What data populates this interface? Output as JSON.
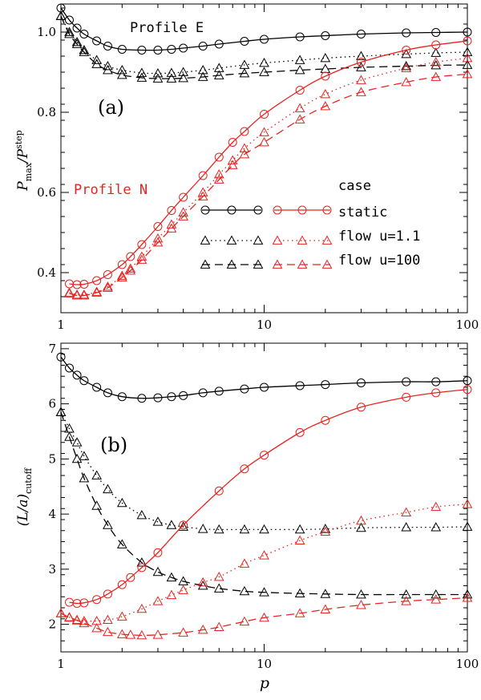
{
  "colors": {
    "black": "#000000",
    "red": "#e8231f"
  },
  "x_label": "p",
  "chart_data": [
    {
      "type": "line",
      "panel_label": "(a)",
      "title": "",
      "xlabel": "p",
      "ylabel_main": "P",
      "ylabel_sub1": "max",
      "ylabel_sep": "/P",
      "ylabel_sup": "step",
      "xscale": "log",
      "xlim": [
        1,
        100
      ],
      "ylim": [
        0.3,
        1.07
      ],
      "x_ticks": [
        1,
        10,
        100
      ],
      "x_tick_labels": [
        "1",
        "10",
        "100"
      ],
      "y_ticks": [
        0.4,
        0.6,
        0.8,
        1.0
      ],
      "y_tick_labels": [
        "0.4",
        "0.6",
        "0.8",
        "1.0"
      ],
      "annotations": [
        {
          "text": "Profile E",
          "color": "black"
        },
        {
          "text": "Profile N",
          "color": "red"
        }
      ],
      "legend": {
        "title": "case",
        "entries": [
          {
            "label": "static",
            "style": "solid",
            "marker": "circle"
          },
          {
            "label": "flow u=1.1",
            "style": "dotted",
            "marker": "triangle"
          },
          {
            "label": "flow u=100",
            "style": "dashed",
            "marker": "triangle"
          }
        ]
      },
      "series": [
        {
          "name": "Profile E static",
          "color": "black",
          "style": "solid",
          "marker": "circle",
          "x": [
            1,
            1.1,
            1.2,
            1.3,
            1.5,
            1.7,
            2,
            2.5,
            3,
            3.5,
            4,
            5,
            6,
            8,
            10,
            15,
            20,
            30,
            50,
            70,
            100
          ],
          "y": [
            1.06,
            1.03,
            1.01,
            0.995,
            0.978,
            0.965,
            0.957,
            0.955,
            0.955,
            0.957,
            0.96,
            0.965,
            0.97,
            0.977,
            0.982,
            0.988,
            0.991,
            0.995,
            0.998,
            0.999,
            1.0
          ]
        },
        {
          "name": "Profile E flow u=1.1",
          "color": "black",
          "style": "dotted",
          "marker": "triangle",
          "x": [
            1,
            1.1,
            1.2,
            1.3,
            1.5,
            1.7,
            2,
            2.5,
            3,
            3.5,
            4,
            5,
            6,
            8,
            10,
            15,
            20,
            30,
            50,
            70,
            100
          ],
          "y": [
            1.04,
            1.0,
            0.975,
            0.955,
            0.93,
            0.915,
            0.905,
            0.898,
            0.897,
            0.898,
            0.9,
            0.905,
            0.91,
            0.918,
            0.923,
            0.93,
            0.935,
            0.94,
            0.945,
            0.948,
            0.95
          ]
        },
        {
          "name": "Profile E flow u=100",
          "color": "black",
          "style": "dashed",
          "marker": "triangle",
          "x": [
            1,
            1.1,
            1.2,
            1.3,
            1.5,
            1.7,
            2,
            2.5,
            3,
            3.5,
            4,
            5,
            6,
            8,
            10,
            15,
            20,
            30,
            50,
            70,
            100
          ],
          "y": [
            1.04,
            0.995,
            0.97,
            0.95,
            0.92,
            0.905,
            0.893,
            0.886,
            0.884,
            0.884,
            0.885,
            0.888,
            0.892,
            0.897,
            0.9,
            0.905,
            0.908,
            0.912,
            0.915,
            0.917,
            0.918
          ]
        },
        {
          "name": "Profile N static",
          "color": "red",
          "style": "solid",
          "marker": "circle",
          "x": [
            1.1,
            1.2,
            1.3,
            1.5,
            1.7,
            2,
            2.2,
            2.5,
            3,
            3.5,
            4,
            5,
            6,
            7,
            8,
            10,
            15,
            20,
            30,
            50,
            70,
            100
          ],
          "y": [
            0.372,
            0.37,
            0.371,
            0.38,
            0.395,
            0.42,
            0.44,
            0.47,
            0.515,
            0.555,
            0.588,
            0.642,
            0.688,
            0.725,
            0.752,
            0.795,
            0.855,
            0.89,
            0.925,
            0.955,
            0.968,
            0.978
          ]
        },
        {
          "name": "Profile N flow u=1.1",
          "color": "red",
          "style": "dotted",
          "marker": "triangle",
          "x": [
            1.1,
            1.2,
            1.3,
            1.5,
            1.7,
            2,
            2.2,
            2.5,
            3,
            3.5,
            4,
            5,
            6,
            7,
            8,
            10,
            15,
            20,
            30,
            50,
            70,
            100
          ],
          "y": [
            0.35,
            0.345,
            0.345,
            0.352,
            0.365,
            0.392,
            0.41,
            0.44,
            0.485,
            0.52,
            0.55,
            0.6,
            0.645,
            0.68,
            0.71,
            0.75,
            0.81,
            0.845,
            0.88,
            0.91,
            0.925,
            0.935
          ]
        },
        {
          "name": "Profile N flow u=100",
          "color": "red",
          "style": "dashed",
          "marker": "triangle",
          "x": [
            1.1,
            1.2,
            1.3,
            1.5,
            1.7,
            2,
            2.2,
            2.5,
            3,
            3.5,
            4,
            5,
            6,
            7,
            8,
            10,
            15,
            20,
            30,
            50,
            70,
            100
          ],
          "y": [
            0.348,
            0.343,
            0.343,
            0.35,
            0.362,
            0.388,
            0.405,
            0.432,
            0.475,
            0.51,
            0.54,
            0.59,
            0.632,
            0.668,
            0.695,
            0.725,
            0.782,
            0.815,
            0.85,
            0.875,
            0.888,
            0.895
          ]
        }
      ]
    },
    {
      "type": "line",
      "panel_label": "(b)",
      "title": "",
      "xlabel": "p",
      "ylabel_main": "(L/a)",
      "ylabel_sub1": "cutoff",
      "ylabel_sep": "",
      "ylabel_sup": "",
      "xscale": "log",
      "xlim": [
        1,
        100
      ],
      "ylim": [
        1.5,
        7.1
      ],
      "x_ticks": [
        1,
        10,
        100
      ],
      "x_tick_labels": [
        "1",
        "10",
        "100"
      ],
      "y_ticks": [
        2,
        3,
        4,
        5,
        6,
        7
      ],
      "y_tick_labels": [
        "2",
        "3",
        "4",
        "5",
        "6",
        "7"
      ],
      "annotations": [],
      "legend": null,
      "series": [
        {
          "name": "Profile E static",
          "color": "black",
          "style": "solid",
          "marker": "circle",
          "x": [
            1,
            1.1,
            1.2,
            1.3,
            1.5,
            1.7,
            2,
            2.5,
            3,
            3.5,
            4,
            5,
            6,
            8,
            10,
            15,
            20,
            30,
            50,
            70,
            100
          ],
          "y": [
            6.85,
            6.65,
            6.52,
            6.42,
            6.3,
            6.2,
            6.13,
            6.1,
            6.11,
            6.13,
            6.15,
            6.2,
            6.23,
            6.27,
            6.3,
            6.33,
            6.35,
            6.38,
            6.4,
            6.4,
            6.42
          ]
        },
        {
          "name": "Profile E flow u=1.1",
          "color": "black",
          "style": "dotted",
          "marker": "triangle",
          "x": [
            1,
            1.1,
            1.2,
            1.3,
            1.5,
            1.7,
            2,
            2.5,
            3,
            3.5,
            4,
            5,
            6,
            8,
            10,
            15,
            20,
            30,
            50,
            70,
            100
          ],
          "y": [
            5.85,
            5.55,
            5.3,
            5.05,
            4.7,
            4.45,
            4.2,
            3.98,
            3.86,
            3.8,
            3.77,
            3.73,
            3.72,
            3.72,
            3.72,
            3.72,
            3.73,
            3.75,
            3.76,
            3.76,
            3.77
          ]
        },
        {
          "name": "Profile E flow u=100",
          "color": "black",
          "style": "dashed",
          "marker": "triangle",
          "x": [
            1,
            1.1,
            1.2,
            1.3,
            1.5,
            1.7,
            2,
            2.5,
            3,
            3.5,
            4,
            5,
            6,
            8,
            10,
            15,
            20,
            30,
            50,
            70,
            100
          ],
          "y": [
            5.85,
            5.4,
            5.0,
            4.65,
            4.15,
            3.8,
            3.45,
            3.12,
            2.95,
            2.85,
            2.78,
            2.7,
            2.65,
            2.6,
            2.58,
            2.56,
            2.55,
            2.54,
            2.54,
            2.54,
            2.54
          ]
        },
        {
          "name": "Profile N static",
          "color": "red",
          "style": "solid",
          "marker": "circle",
          "x": [
            1.1,
            1.2,
            1.3,
            1.5,
            1.7,
            2,
            2.2,
            2.5,
            3,
            4,
            6,
            8,
            10,
            15,
            20,
            30,
            50,
            70,
            100
          ],
          "y": [
            2.4,
            2.38,
            2.39,
            2.45,
            2.55,
            2.72,
            2.85,
            3.03,
            3.3,
            3.8,
            4.42,
            4.82,
            5.07,
            5.48,
            5.7,
            5.94,
            6.12,
            6.2,
            6.26
          ]
        },
        {
          "name": "Profile N flow u=1.1",
          "color": "red",
          "style": "dotted",
          "marker": "triangle",
          "x": [
            1,
            1.1,
            1.2,
            1.3,
            1.5,
            1.7,
            2,
            2.5,
            3,
            3.5,
            4,
            5,
            6,
            8,
            10,
            15,
            20,
            30,
            50,
            70,
            100
          ],
          "y": [
            2.2,
            2.13,
            2.08,
            2.06,
            2.06,
            2.08,
            2.14,
            2.28,
            2.42,
            2.53,
            2.62,
            2.76,
            2.86,
            3.1,
            3.25,
            3.52,
            3.68,
            3.88,
            4.03,
            4.13,
            4.18
          ]
        },
        {
          "name": "Profile N flow u=100",
          "color": "red",
          "style": "dashed",
          "marker": "triangle",
          "x": [
            1,
            1.1,
            1.2,
            1.3,
            1.5,
            1.7,
            2,
            2.2,
            2.5,
            3,
            4,
            5,
            6,
            8,
            10,
            15,
            20,
            30,
            50,
            70,
            100
          ],
          "y": [
            2.2,
            2.12,
            2.07,
            2.02,
            1.93,
            1.86,
            1.82,
            1.81,
            1.8,
            1.81,
            1.85,
            1.9,
            1.95,
            2.05,
            2.12,
            2.2,
            2.27,
            2.35,
            2.42,
            2.45,
            2.48
          ]
        }
      ]
    }
  ]
}
